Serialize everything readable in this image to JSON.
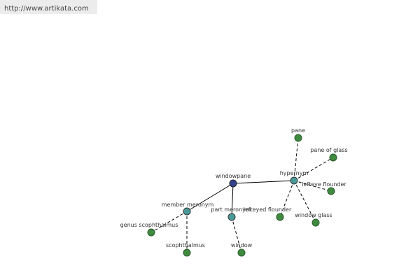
{
  "header": {
    "url": "http://www.artikata.com"
  },
  "nodes": [
    {
      "label": "windowpane"
    },
    {
      "label": "hypernym"
    },
    {
      "label": "member meronym"
    },
    {
      "label": "part meronym"
    },
    {
      "label": "pane"
    },
    {
      "label": "pane of glass"
    },
    {
      "label": "lefteye flounder"
    },
    {
      "label": "lefteyed flounder"
    },
    {
      "label": "window glass"
    },
    {
      "label": "genus scophthalmus"
    },
    {
      "label": "scophthalmus"
    },
    {
      "label": "window"
    }
  ]
}
